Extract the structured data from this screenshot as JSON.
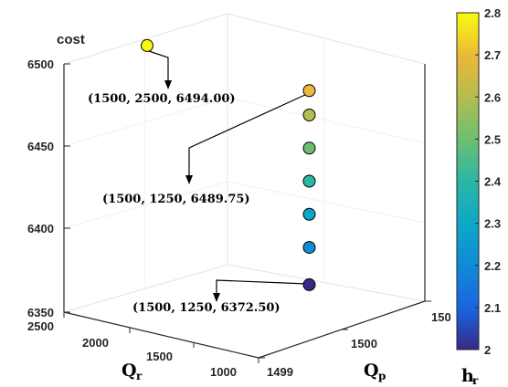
{
  "chart_data": {
    "type": "scatter3d",
    "z_label": "cost",
    "x_label": "Q",
    "x_label_sub": "r",
    "y_label": "Q",
    "y_label_sub": "p",
    "colorbar_label": "h",
    "colorbar_label_sub": "r",
    "x_ticks": [
      "2500",
      "2000",
      "1500",
      "1000"
    ],
    "y_ticks": [
      "1499",
      "1500",
      "150"
    ],
    "z_ticks": [
      "6350",
      "6400",
      "6450",
      "6500"
    ],
    "colorbar_ticks": [
      "2",
      "2.1",
      "2.2",
      "2.3",
      "2.4",
      "2.5",
      "2.6",
      "2.7",
      "2.8"
    ],
    "zlim": [
      6350,
      6500
    ],
    "clim": [
      2,
      2.8
    ],
    "colormap": "parula",
    "grid": true,
    "points": [
      {
        "Qr": 2500,
        "Qp": 1500,
        "cost": 6494.0,
        "hr": 2.8
      },
      {
        "Qr": 1250,
        "Qp": 1500,
        "cost": 6489.75,
        "hr": 2.7
      },
      {
        "Qr": 1250,
        "Qp": 1500,
        "cost": 6475.0,
        "hr": 2.6
      },
      {
        "Qr": 1250,
        "Qp": 1500,
        "cost": 6455.0,
        "hr": 2.5
      },
      {
        "Qr": 1250,
        "Qp": 1500,
        "cost": 6435.0,
        "hr": 2.4
      },
      {
        "Qr": 1250,
        "Qp": 1500,
        "cost": 6415.0,
        "hr": 2.3
      },
      {
        "Qr": 1250,
        "Qp": 1500,
        "cost": 6395.0,
        "hr": 2.2
      },
      {
        "Qr": 1250,
        "Qp": 1500,
        "cost": 6372.5,
        "hr": 2.0
      }
    ],
    "annotations": [
      "(1500, 2500, 6494.00)",
      "(1500, 1250, 6489.75)",
      "(1500, 1250, 6372.50)"
    ]
  }
}
